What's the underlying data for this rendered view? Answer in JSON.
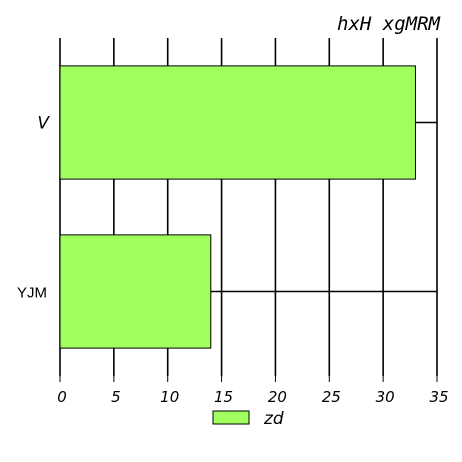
{
  "chart_data": {
    "type": "bar",
    "orientation": "horizontal",
    "title": "hxH xgMRM",
    "categories": [
      "V",
      "YJM"
    ],
    "series": [
      {
        "name": "zd",
        "values": [
          33,
          14
        ],
        "color": "#a1ff5d"
      }
    ],
    "xlim": [
      0,
      35
    ],
    "xticks": [
      0,
      5,
      10,
      15,
      20,
      25,
      30,
      35
    ],
    "grid": true,
    "legend_position": "bottom"
  }
}
